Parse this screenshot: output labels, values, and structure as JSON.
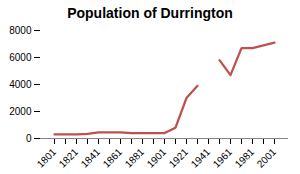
{
  "chart_data": {
    "type": "line",
    "title": "Population of Durrington",
    "categories": [
      "1801",
      null,
      "1821",
      null,
      "1841",
      null,
      "1861",
      null,
      "1881",
      null,
      "1901",
      null,
      "1921",
      null,
      "1941",
      null,
      "1961",
      null,
      "1981",
      null,
      "2001"
    ],
    "values": [
      300,
      300,
      300,
      350,
      450,
      450,
      450,
      400,
      400,
      400,
      400,
      800,
      3000,
      3900,
      null,
      5800,
      4700,
      6700,
      6700,
      6900,
      7100
    ],
    "color": "#c0504d",
    "ylim": [
      0,
      8000
    ],
    "yticks": [
      0,
      2000,
      4000,
      6000,
      8000
    ],
    "grid": false
  }
}
